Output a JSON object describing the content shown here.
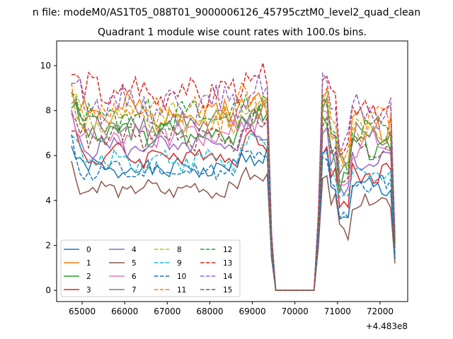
{
  "chart_data": {
    "type": "line",
    "suptitle": "n file: modeM0/AS1T05_088T01_9000006126_45795cztM0_level2_quad_clean",
    "title": "Quadrant 1 module wise count rates with 100.0s bins.",
    "xlabel": "",
    "ylabel": "",
    "x_offset_label": "+4.483e8",
    "xlim": [
      64400,
      72650
    ],
    "ylim": [
      -0.5,
      11.1
    ],
    "xticks": [
      65000,
      66000,
      67000,
      68000,
      69000,
      70000,
      71000,
      72000
    ],
    "xtick_labels": [
      "65000",
      "66000",
      "67000",
      "68000",
      "69000",
      "70000",
      "71000",
      "72000"
    ],
    "yticks": [
      0,
      2,
      4,
      6,
      8,
      10
    ],
    "ytick_labels": [
      "0",
      "2",
      "4",
      "6",
      "8",
      "10"
    ],
    "grid": false,
    "legend_position": "lower-left",
    "legend_columns": 4,
    "x_start": 64750,
    "x_step": 100,
    "series": [
      {
        "name": "0",
        "color": "#1f77b4",
        "dash": "solid",
        "base": 5.4,
        "p1": 5.0,
        "p2": 4.6,
        "amp": 0.35,
        "seed": 1
      },
      {
        "name": "1",
        "color": "#ff7f0e",
        "dash": "solid",
        "base": 7.9,
        "p1": 7.5,
        "p2": 7.4,
        "amp": 0.6,
        "seed": 2
      },
      {
        "name": "2",
        "color": "#2ca02c",
        "dash": "solid",
        "base": 7.0,
        "p1": 6.6,
        "p2": 6.3,
        "amp": 0.45,
        "seed": 3
      },
      {
        "name": "3",
        "color": "#d62728",
        "dash": "solid",
        "base": 6.0,
        "p1": 5.7,
        "p2": 5.2,
        "amp": 0.4,
        "seed": 4
      },
      {
        "name": "4",
        "color": "#9467bd",
        "dash": "solid",
        "base": 6.4,
        "p1": 6.2,
        "p2": 5.8,
        "amp": 0.4,
        "seed": 5
      },
      {
        "name": "5",
        "color": "#8c564b",
        "dash": "solid",
        "base": 4.5,
        "p1": 4.8,
        "p2": 4.0,
        "amp": 0.3,
        "seed": 6
      },
      {
        "name": "6",
        "color": "#e377c2",
        "dash": "solid",
        "base": 7.0,
        "p1": 6.9,
        "p2": 6.5,
        "amp": 0.5,
        "seed": 7
      },
      {
        "name": "7",
        "color": "#7f7f7f",
        "dash": "solid",
        "base": 7.4,
        "p1": 7.0,
        "p2": 6.9,
        "amp": 0.5,
        "seed": 8
      },
      {
        "name": "8",
        "color": "#bcbd22",
        "dash": "dashed",
        "base": 7.6,
        "p1": 7.3,
        "p2": 7.1,
        "amp": 0.5,
        "seed": 9
      },
      {
        "name": "9",
        "color": "#17becf",
        "dash": "dashed",
        "base": 5.8,
        "p1": 5.5,
        "p2": 5.2,
        "amp": 0.4,
        "seed": 10
      },
      {
        "name": "10",
        "color": "#1f77b4",
        "dash": "dashed",
        "base": 5.3,
        "p1": 5.1,
        "p2": 4.7,
        "amp": 0.35,
        "seed": 11
      },
      {
        "name": "11",
        "color": "#ff7f0e",
        "dash": "dashed",
        "base": 7.8,
        "p1": 7.7,
        "p2": 7.5,
        "amp": 0.6,
        "seed": 12
      },
      {
        "name": "12",
        "color": "#2ca02c",
        "dash": "dashed",
        "base": 7.8,
        "p1": 7.6,
        "p2": 7.2,
        "amp": 0.5,
        "seed": 13
      },
      {
        "name": "13",
        "color": "#d62728",
        "dash": "dashed",
        "base": 8.8,
        "p1": 8.7,
        "p2": 8.2,
        "amp": 0.6,
        "seed": 14
      },
      {
        "name": "14",
        "color": "#9467bd",
        "dash": "dashed",
        "base": 8.3,
        "p1": 8.6,
        "p2": 7.9,
        "amp": 0.6,
        "seed": 15
      },
      {
        "name": "15",
        "color": "#8c564b",
        "dash": "dashed",
        "base": 6.8,
        "p1": 6.5,
        "p2": 6.3,
        "amp": 0.45,
        "seed": 16
      }
    ]
  }
}
